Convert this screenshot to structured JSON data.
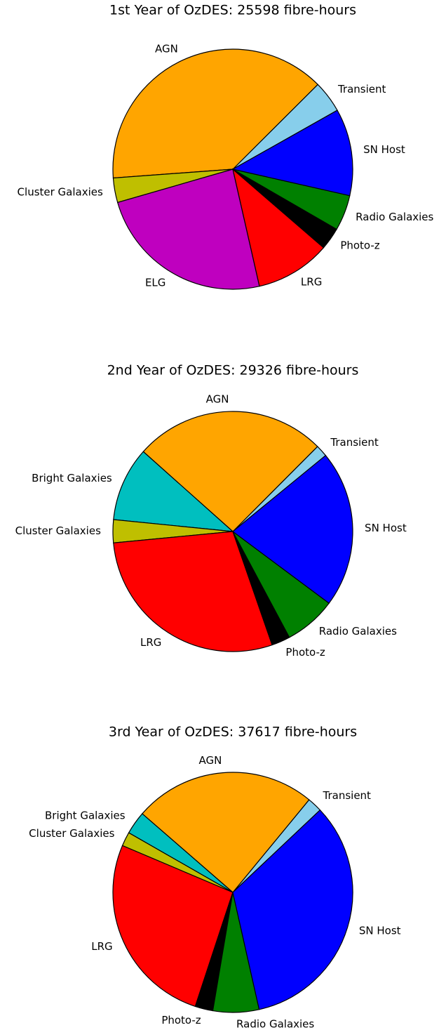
{
  "chart_data": [
    {
      "type": "pie",
      "title": "1st Year of OzDES: 25598 fibre-hours",
      "startangle": 29.4,
      "categories": [
        "Transient",
        "AGN",
        "Cluster Galaxies",
        "ELG",
        "LRG",
        "Photo-z",
        "Radio Galaxies",
        "SN Host"
      ],
      "values": [
        4.3,
        38.7,
        3.3,
        24.1,
        10.1,
        3.0,
        4.8,
        11.7
      ],
      "colors": [
        "#87ceeb",
        "#ffa500",
        "#bfbf00",
        "#bf00bf",
        "#ff0000",
        "#000000",
        "#008000",
        "#0000ff"
      ]
    },
    {
      "type": "pie",
      "title": "2nd Year of OzDES: 29326 fibre-hours",
      "startangle": 39.3,
      "categories": [
        "Transient",
        "AGN",
        "Bright Galaxies",
        "Cluster Galaxies",
        "LRG",
        "Photo-z",
        "Radio Galaxies",
        "SN Host"
      ],
      "values": [
        1.6,
        25.9,
        10.0,
        3.1,
        28.8,
        2.5,
        7.0,
        21.1
      ],
      "colors": [
        "#87ceeb",
        "#ffa500",
        "#00bfbf",
        "#bfbf00",
        "#ff0000",
        "#000000",
        "#008000",
        "#0000ff"
      ]
    },
    {
      "type": "pie",
      "title": "3rd Year of OzDES: 37617 fibre-hours",
      "startangle": 43.3,
      "categories": [
        "Transient",
        "AGN",
        "Bright Galaxies",
        "Cluster Galaxies",
        "LRG",
        "Photo-z",
        "Radio Galaxies",
        "SN Host"
      ],
      "values": [
        2.0,
        24.6,
        3.1,
        1.9,
        26.3,
        2.4,
        6.2,
        33.5
      ],
      "colors": [
        "#87ceeb",
        "#ffa500",
        "#00bfbf",
        "#bfbf00",
        "#ff0000",
        "#000000",
        "#008000",
        "#0000ff"
      ]
    }
  ]
}
